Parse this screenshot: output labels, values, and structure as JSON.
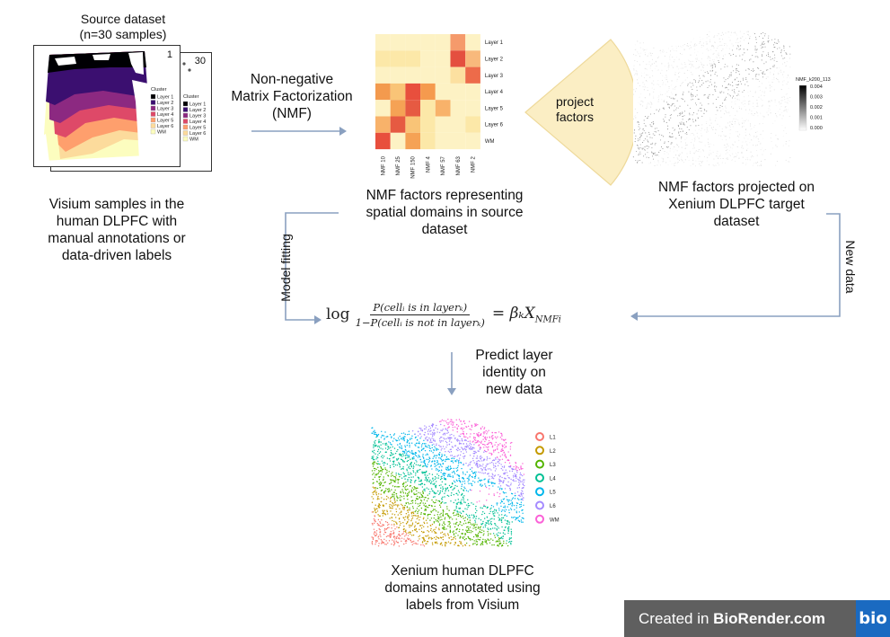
{
  "source": {
    "title_line1": "Source dataset",
    "title_line2": "(n=30 samples)",
    "front_index": "1",
    "back_index": "30",
    "legend_title": "Cluster",
    "legend_items": [
      "Layer 1",
      "Layer 2",
      "Layer 3",
      "Layer 4",
      "Layer 5",
      "Layer 6",
      "WM"
    ],
    "legend_colors": [
      "#000004",
      "#3b0f70",
      "#8c2981",
      "#de4968",
      "#fe9f6d",
      "#fcdb9c",
      "#fcfdbf"
    ],
    "caption_lines": [
      "Visium samples in the",
      "human DLPFC with",
      "manual annotations or",
      "data-driven labels"
    ]
  },
  "nmf_arrow_label_lines": [
    "Non-negative",
    "Matrix Factorization",
    "(NMF)"
  ],
  "heatmap": {
    "row_labels": [
      "Layer 1",
      "Layer 2",
      "Layer 3",
      "Layer 4",
      "Layer 5",
      "Layer 6",
      "WM"
    ],
    "col_labels": [
      "NMF 10",
      "NMF 25",
      "NMF 150",
      "NMF 4",
      "NMF 57",
      "NMF 63",
      "NMF 2"
    ],
    "caption_lines": [
      "NMF factors representing",
      "spatial domains in source",
      "dataset"
    ]
  },
  "project_label_lines": [
    "project",
    "factors"
  ],
  "xenium_nmf": {
    "legend_title": "NMF_k200_113",
    "legend_ticks": [
      "0.004",
      "0.003",
      "0.002",
      "0.001",
      "0.000"
    ],
    "caption_lines": [
      "NMF factors projected on",
      "Xenium DLPFC target",
      "dataset"
    ]
  },
  "model_fitting_label": "Model fitting",
  "new_data_label": "New data",
  "formula": {
    "log": "log",
    "numerator": "P(cellᵢ is in layerₖ)",
    "denominator": "1−P(cellᵢ is not in layerₖ)",
    "rhs": "= βₖX",
    "rhs_sub": "NMFi"
  },
  "predict_label_lines": [
    "Predict layer",
    "identity on",
    "new data"
  ],
  "xenium_domains": {
    "legend_items": [
      "L1",
      "L2",
      "L3",
      "L4",
      "L5",
      "L6",
      "WM"
    ],
    "legend_colors": [
      "#f8766d",
      "#c49a00",
      "#53b400",
      "#00c094",
      "#00b6eb",
      "#a58aff",
      "#fb61d7"
    ],
    "caption_lines": [
      "Xenium human DLPFC",
      "domains annotated using",
      "labels from Visium"
    ]
  },
  "biorender": {
    "prefix": "Created in ",
    "brand": "BioRender.com",
    "logo": "bio"
  }
}
